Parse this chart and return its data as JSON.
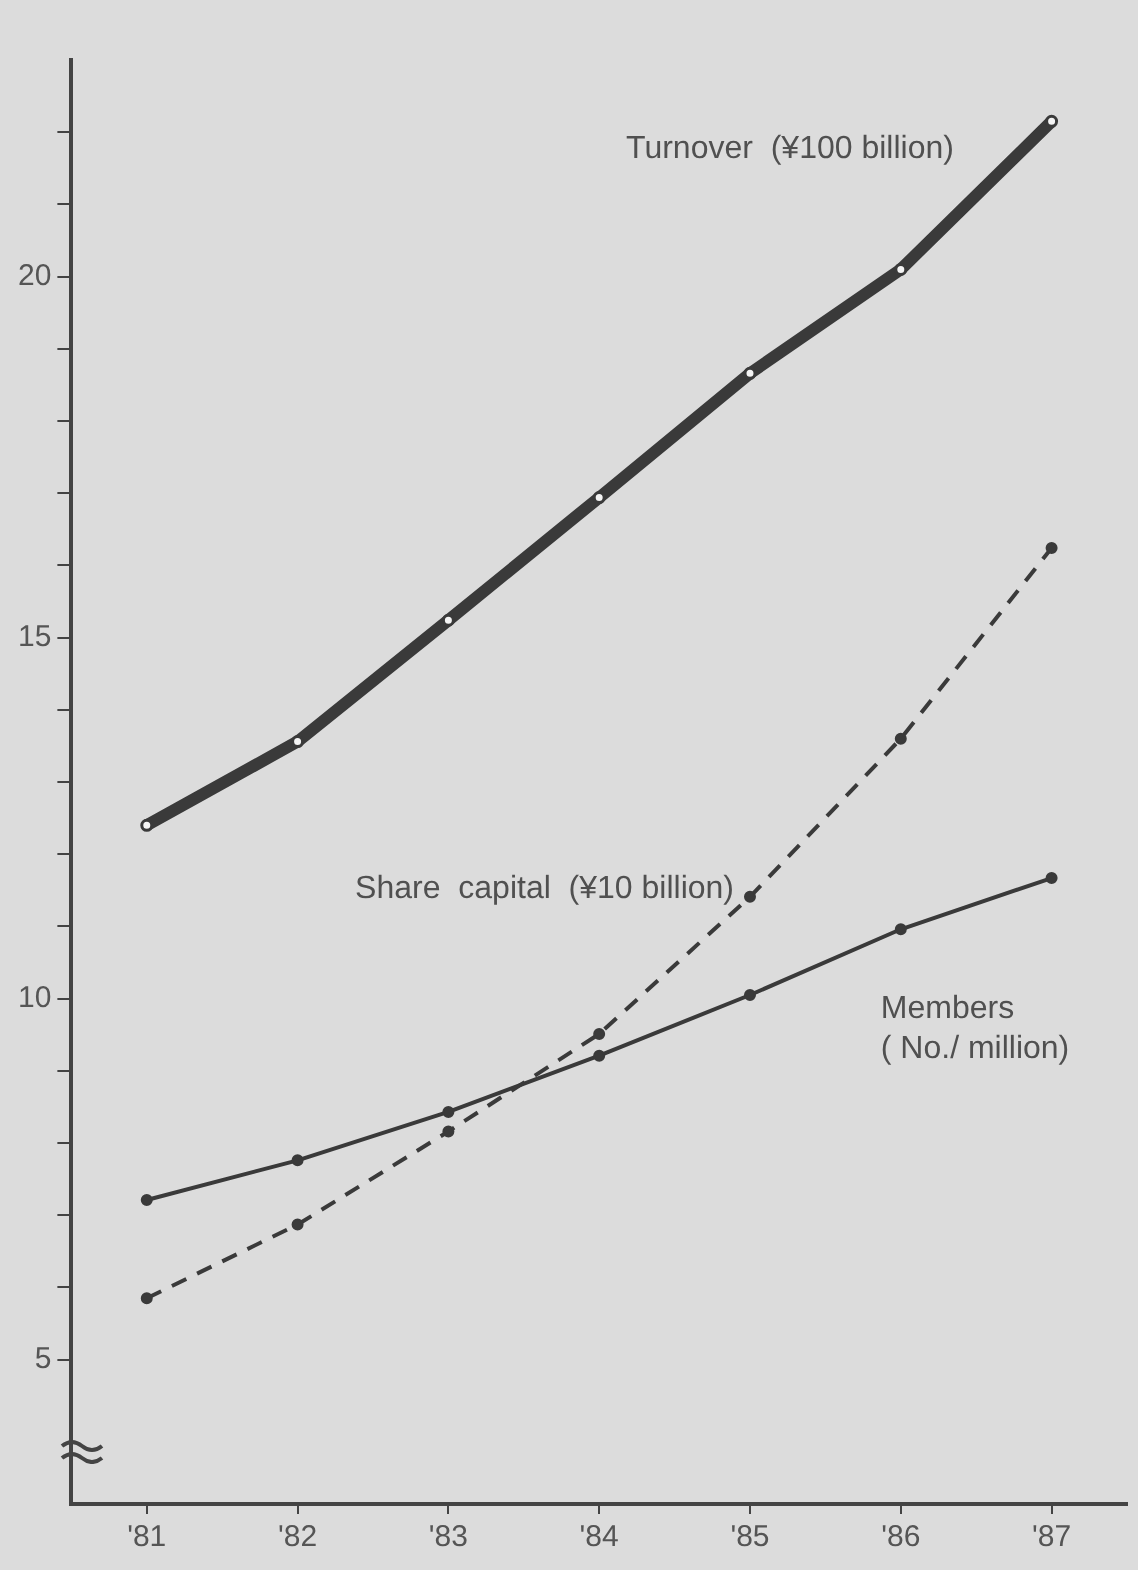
{
  "chart_data": {
    "type": "line",
    "categories": [
      "'81",
      "'82",
      "'83",
      "'84",
      "'85",
      "'86",
      "'87"
    ],
    "series": [
      {
        "name": "Turnover  (¥100 billion)",
        "color": "#3a3a3a",
        "values": [
          12.4,
          13.56,
          15.24,
          16.94,
          18.66,
          20.1,
          22.15
        ]
      },
      {
        "name": "Share  capital  (¥10 billion)",
        "color": "#3a3a3a",
        "line_style": "dashed",
        "values": [
          5.85,
          6.87,
          8.16,
          9.51,
          11.41,
          13.6,
          16.24
        ]
      },
      {
        "name": "Members\n( No./ million)",
        "color": "#3a3a3a",
        "values": [
          7.21,
          7.76,
          8.43,
          9.21,
          10.05,
          10.96,
          11.67
        ]
      }
    ],
    "ylim": [
      3,
      23
    ],
    "yticks": [
      5,
      10,
      15,
      20,
      {
        "value": 6,
        "label": null
      },
      {
        "value": 7,
        "label": null
      },
      {
        "value": 8,
        "label": null
      },
      {
        "value": 9,
        "label": null
      },
      {
        "value": 11,
        "label": null
      },
      {
        "value": 12,
        "label": null
      },
      {
        "value": 13,
        "label": null
      },
      {
        "value": 14,
        "label": null
      },
      {
        "value": 16,
        "label": null
      },
      {
        "value": 17,
        "label": null
      },
      {
        "value": 18,
        "label": null
      },
      {
        "value": 19,
        "label": null
      },
      {
        "value": 21,
        "label": null
      },
      {
        "value": 22,
        "label": null
      }
    ],
    "grid": false,
    "legend": false,
    "marker": "circle",
    "line_style": "solid"
  }
}
